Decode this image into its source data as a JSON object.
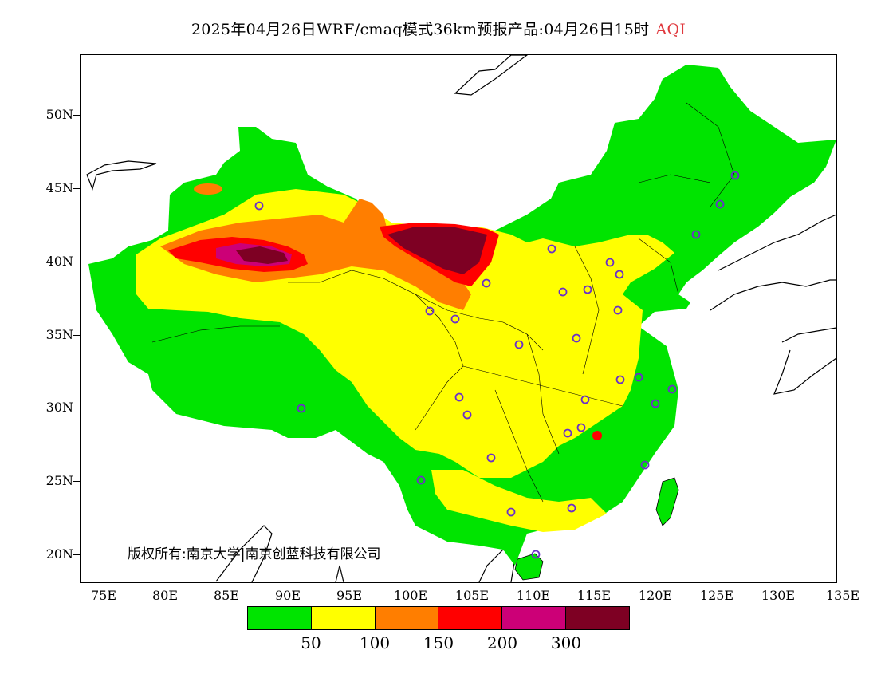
{
  "title": {
    "main": "2025年04月26日WRF/cmaq模式36km预报产品:04月26日15时",
    "variable": "AQI",
    "variable_color": "#e0393e"
  },
  "map": {
    "lat_labels": [
      "50N",
      "45N",
      "40N",
      "35N",
      "30N",
      "25N",
      "20N"
    ],
    "lon_labels": [
      "75E",
      "80E",
      "85E",
      "90E",
      "95E",
      "100E",
      "105E",
      "110E",
      "115E",
      "120E",
      "125E",
      "130E",
      "135E"
    ],
    "copyright": "版权所有:南京大学|南京创蓝科技有限公司"
  },
  "legend": {
    "colors": [
      "#00e400",
      "#ffff00",
      "#ff7e00",
      "#ff0000",
      "#cc0077",
      "#7e0023"
    ],
    "labels": [
      "50",
      "100",
      "150",
      "200",
      "300"
    ]
  },
  "colors": {
    "station_marker": "#6a2fc9",
    "coastline": "#000000"
  }
}
